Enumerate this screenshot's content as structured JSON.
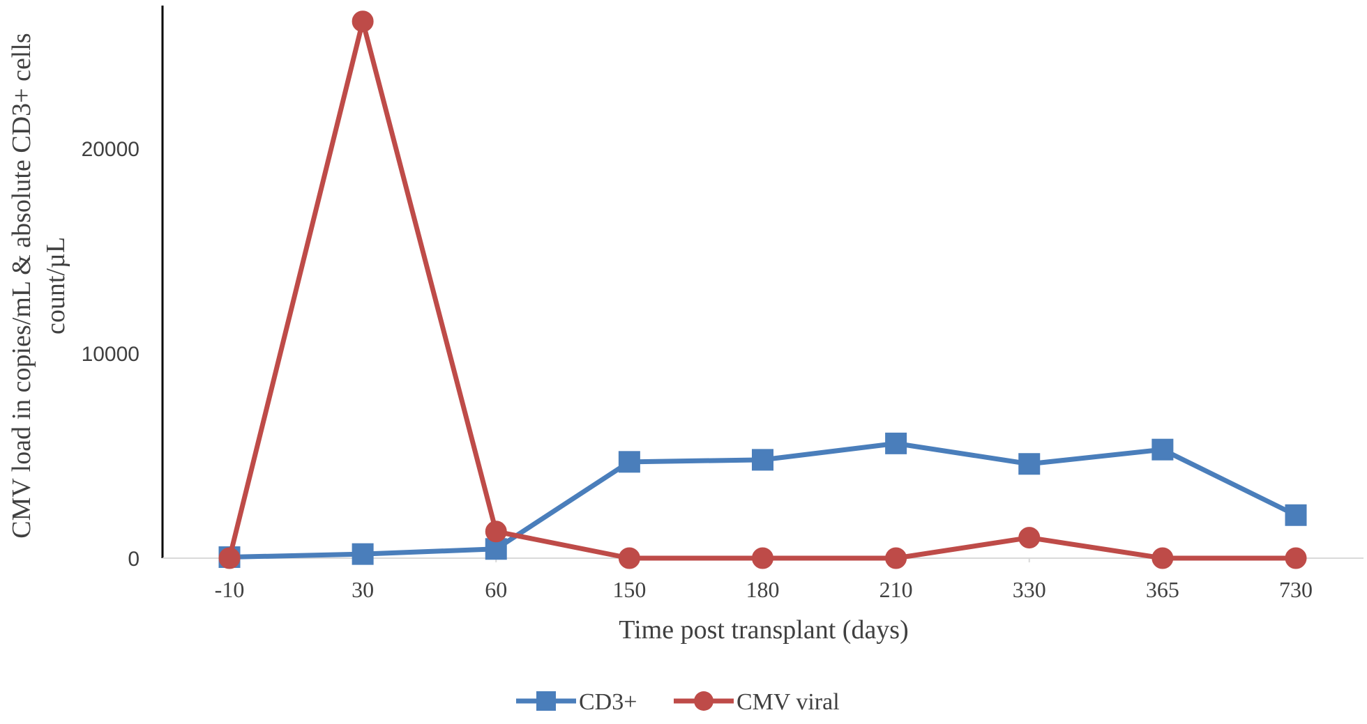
{
  "chart_data": {
    "type": "line",
    "title": "",
    "xlabel": "Time post transplant (days)",
    "ylabel_line1": "CMV load in copies/mL & absolute CD3+ cells",
    "ylabel_line2": "count/µL",
    "categories": [
      "-10",
      "30",
      "60",
      "150",
      "180",
      "210",
      "330",
      "365",
      "730"
    ],
    "ylim": [
      0,
      26500
    ],
    "yticks": [
      0,
      10000,
      20000
    ],
    "ytick_labels": [
      "0",
      "10000",
      "20000"
    ],
    "grid": false,
    "legend_position": "bottom",
    "series": [
      {
        "name": "CD3+",
        "color": "#4a7ebb",
        "marker": "square",
        "values": [
          50,
          200,
          450,
          4700,
          4800,
          5600,
          4600,
          5300,
          2100
        ]
      },
      {
        "name": "CMV viral",
        "color": "#be4b48",
        "marker": "circle",
        "values": [
          0,
          26200,
          1300,
          0,
          0,
          0,
          1000,
          0,
          0
        ]
      }
    ]
  }
}
